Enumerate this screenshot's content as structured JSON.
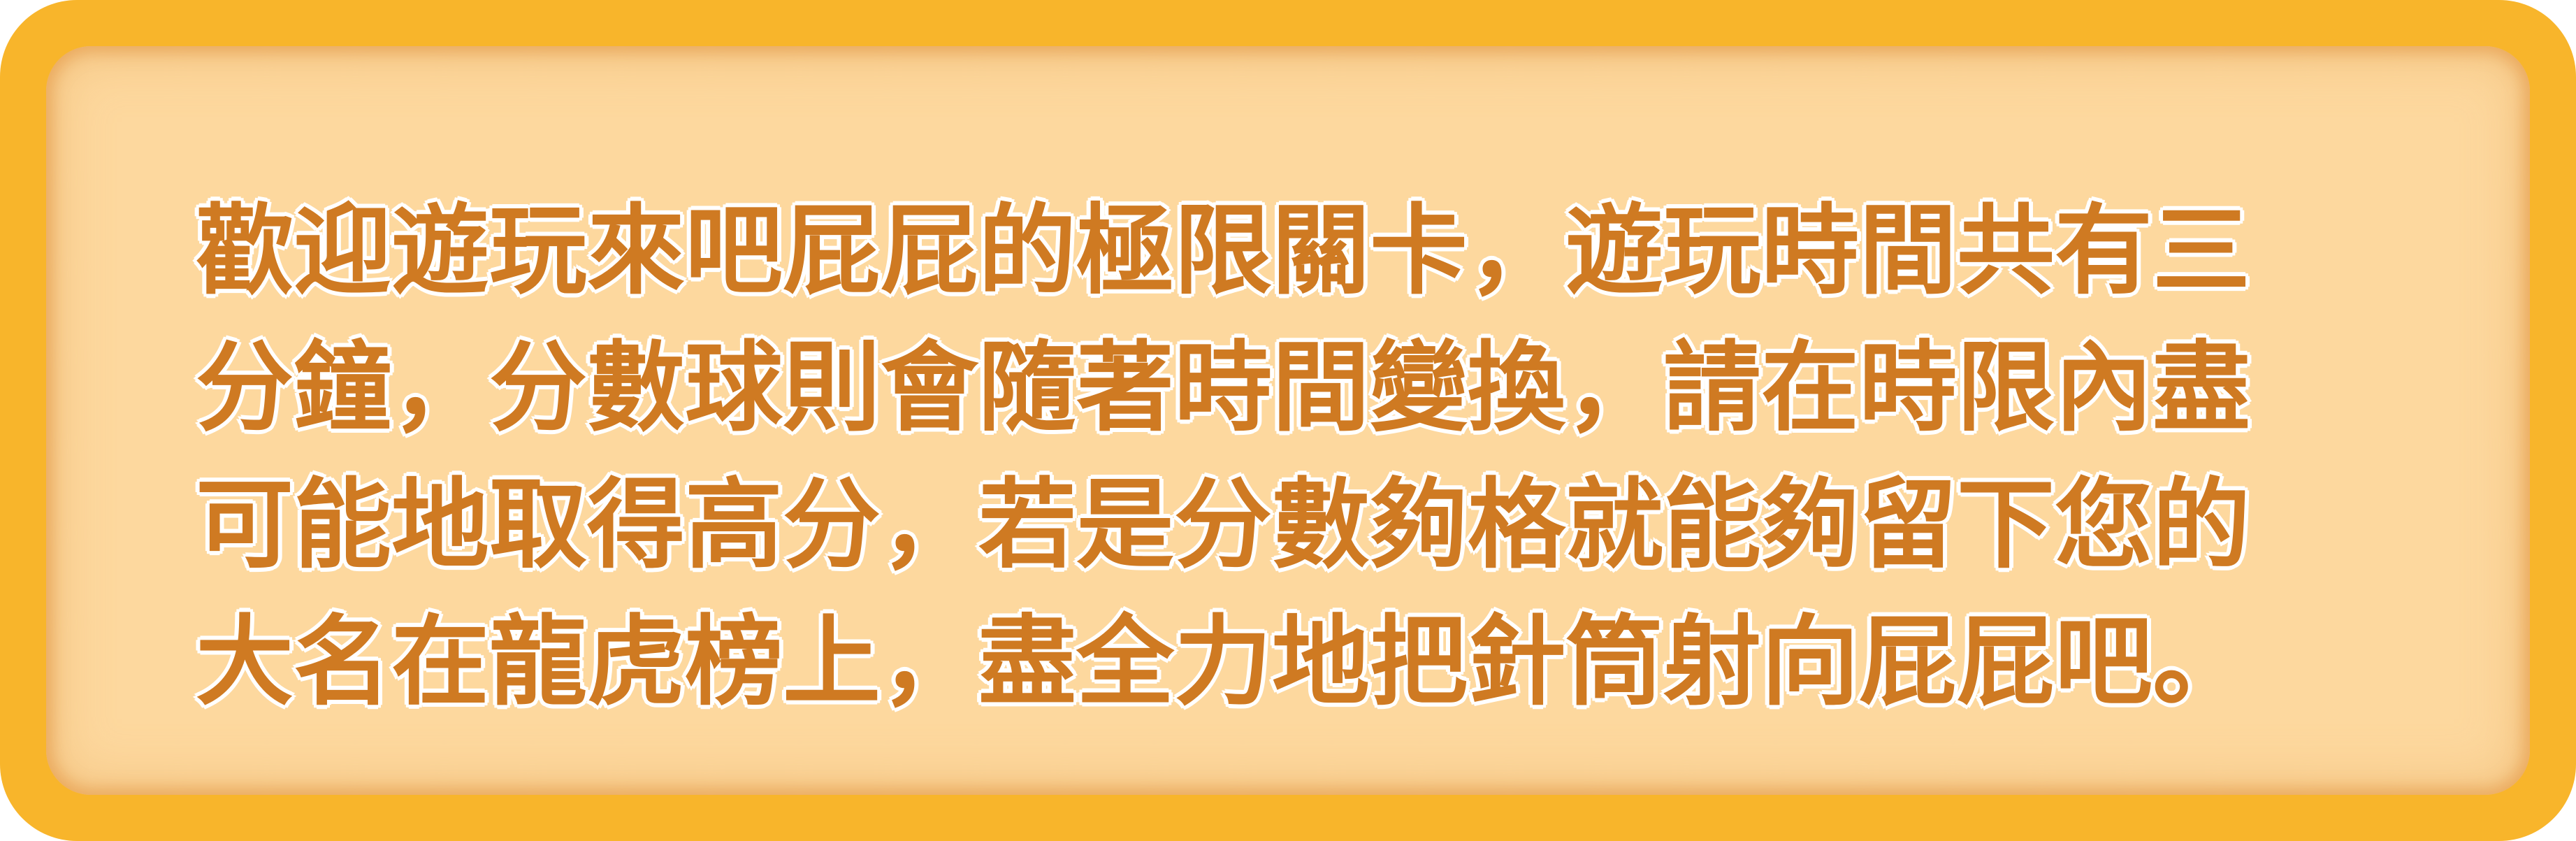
{
  "instructions": {
    "lines": [
      "歡迎遊玩來吧屁屁的極限關卡，遊玩時間共有三",
      "分鐘，分數球則會隨著時間變換，請在時限內盡",
      "可能地取得高分，若是分數夠格就能夠留下您的",
      "大名在龍虎榜上，盡全力地把針筒射向屁屁吧。"
    ]
  },
  "colors": {
    "frame": "#f8b52b",
    "panel": "#fdd89e",
    "text": "#cf7a22",
    "text_outline": "#ffffff"
  }
}
